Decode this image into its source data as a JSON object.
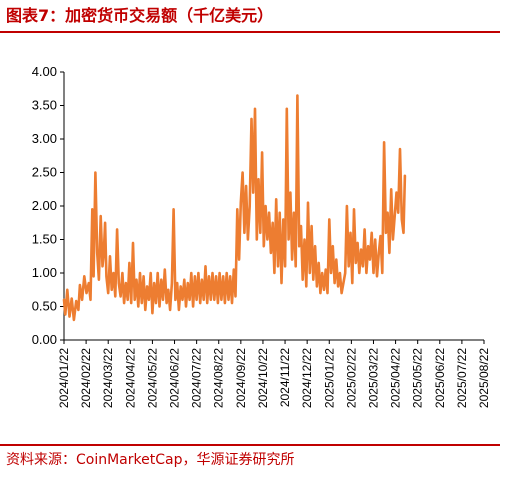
{
  "header": {
    "title": "图表7：加密货币交易额（千亿美元）"
  },
  "footer": {
    "source": "资料来源：CoinMarketCap，华源证券研究所"
  },
  "colors": {
    "accent": "#c00000",
    "series": "#ed7d31"
  },
  "chart_data": {
    "type": "line",
    "title": "",
    "xlabel": "",
    "ylabel": "",
    "ylim": [
      0,
      4
    ],
    "yticks": [
      "0.00",
      "0.50",
      "1.00",
      "1.50",
      "2.00",
      "2.50",
      "3.00",
      "3.50",
      "4.00"
    ],
    "xticks": [
      "2024/01/22",
      "2024/02/22",
      "2024/03/22",
      "2024/04/22",
      "2024/05/22",
      "2024/06/22",
      "2024/07/22",
      "2024/08/22",
      "2024/09/22",
      "2024/10/22",
      "2024/11/22",
      "2024/12/22",
      "2025/01/22",
      "2025/02/22",
      "2025/03/22",
      "2025/04/22",
      "2025/05/22",
      "2025/06/22",
      "2025/07/22",
      "2025/08/22"
    ],
    "grid": false,
    "legend": "none",
    "series": [
      {
        "values": [
          [
            0.0,
            0.6
          ],
          [
            0.06,
            0.38
          ],
          [
            0.15,
            0.75
          ],
          [
            0.25,
            0.35
          ],
          [
            0.35,
            0.62
          ],
          [
            0.45,
            0.3
          ],
          [
            0.55,
            0.58
          ],
          [
            0.65,
            0.45
          ],
          [
            0.72,
            0.82
          ],
          [
            0.82,
            0.6
          ],
          [
            0.92,
            0.95
          ],
          [
            1.02,
            0.7
          ],
          [
            1.12,
            0.85
          ],
          [
            1.2,
            0.6
          ],
          [
            1.28,
            1.95
          ],
          [
            1.34,
            0.95
          ],
          [
            1.42,
            2.5
          ],
          [
            1.5,
            1.3
          ],
          [
            1.58,
            0.9
          ],
          [
            1.66,
            1.85
          ],
          [
            1.74,
            1.1
          ],
          [
            1.8,
            1.3
          ],
          [
            1.86,
            1.75
          ],
          [
            1.92,
            0.95
          ],
          [
            2.0,
            0.7
          ],
          [
            2.08,
            1.25
          ],
          [
            2.16,
            0.75
          ],
          [
            2.24,
            1.0
          ],
          [
            2.32,
            0.65
          ],
          [
            2.4,
            1.65
          ],
          [
            2.48,
            0.85
          ],
          [
            2.56,
            0.65
          ],
          [
            2.64,
            1.0
          ],
          [
            2.72,
            0.55
          ],
          [
            2.8,
            0.85
          ],
          [
            2.88,
            0.6
          ],
          [
            2.96,
            1.15
          ],
          [
            3.04,
            0.55
          ],
          [
            3.12,
            1.45
          ],
          [
            3.2,
            0.6
          ],
          [
            3.28,
            0.9
          ],
          [
            3.36,
            0.5
          ],
          [
            3.44,
            1.0
          ],
          [
            3.52,
            0.55
          ],
          [
            3.6,
            0.95
          ],
          [
            3.68,
            0.45
          ],
          [
            3.76,
            0.8
          ],
          [
            3.84,
            0.6
          ],
          [
            3.92,
            1.0
          ],
          [
            4.0,
            0.4
          ],
          [
            4.08,
            0.85
          ],
          [
            4.16,
            0.55
          ],
          [
            4.24,
            1.0
          ],
          [
            4.32,
            0.5
          ],
          [
            4.4,
            0.9
          ],
          [
            4.48,
            0.6
          ],
          [
            4.56,
            1.05
          ],
          [
            4.64,
            0.55
          ],
          [
            4.72,
            0.75
          ],
          [
            4.8,
            0.45
          ],
          [
            4.88,
            0.85
          ],
          [
            4.96,
            1.95
          ],
          [
            5.04,
            0.6
          ],
          [
            5.12,
            0.85
          ],
          [
            5.2,
            0.45
          ],
          [
            5.28,
            0.8
          ],
          [
            5.36,
            0.6
          ],
          [
            5.44,
            0.9
          ],
          [
            5.52,
            0.5
          ],
          [
            5.6,
            0.85
          ],
          [
            5.68,
            0.6
          ],
          [
            5.76,
            1.0
          ],
          [
            5.84,
            0.5
          ],
          [
            5.92,
            0.95
          ],
          [
            6.0,
            0.6
          ],
          [
            6.08,
            1.0
          ],
          [
            6.16,
            0.55
          ],
          [
            6.24,
            0.9
          ],
          [
            6.32,
            0.6
          ],
          [
            6.4,
            1.1
          ],
          [
            6.48,
            0.55
          ],
          [
            6.56,
            0.95
          ],
          [
            6.64,
            0.6
          ],
          [
            6.72,
            1.0
          ],
          [
            6.8,
            0.6
          ],
          [
            6.88,
            0.95
          ],
          [
            6.96,
            0.55
          ],
          [
            7.04,
            1.0
          ],
          [
            7.12,
            0.6
          ],
          [
            7.2,
            0.95
          ],
          [
            7.28,
            0.55
          ],
          [
            7.36,
            1.0
          ],
          [
            7.44,
            0.6
          ],
          [
            7.52,
            0.95
          ],
          [
            7.6,
            0.55
          ],
          [
            7.68,
            1.05
          ],
          [
            7.76,
            0.65
          ],
          [
            7.84,
            1.95
          ],
          [
            7.92,
            1.2
          ],
          [
            8.0,
            2.05
          ],
          [
            8.08,
            2.5
          ],
          [
            8.16,
            1.6
          ],
          [
            8.24,
            2.3
          ],
          [
            8.32,
            1.5
          ],
          [
            8.4,
            2.0
          ],
          [
            8.48,
            3.3
          ],
          [
            8.56,
            2.2
          ],
          [
            8.64,
            3.45
          ],
          [
            8.72,
            1.5
          ],
          [
            8.8,
            2.4
          ],
          [
            8.88,
            1.6
          ],
          [
            8.96,
            2.8
          ],
          [
            9.04,
            1.4
          ],
          [
            9.12,
            2.0
          ],
          [
            9.2,
            1.5
          ],
          [
            9.28,
            1.9
          ],
          [
            9.36,
            1.3
          ],
          [
            9.44,
            1.75
          ],
          [
            9.52,
            1.0
          ],
          [
            9.6,
            2.1
          ],
          [
            9.68,
            1.1
          ],
          [
            9.76,
            1.9
          ],
          [
            9.84,
            0.85
          ],
          [
            9.92,
            1.8
          ],
          [
            10.0,
            1.1
          ],
          [
            10.08,
            3.45
          ],
          [
            10.16,
            1.5
          ],
          [
            10.24,
            2.2
          ],
          [
            10.32,
            1.2
          ],
          [
            10.4,
            1.9
          ],
          [
            10.48,
            1.1
          ],
          [
            10.56,
            3.65
          ],
          [
            10.64,
            1.4
          ],
          [
            10.72,
            1.7
          ],
          [
            10.8,
            0.9
          ],
          [
            10.88,
            1.5
          ],
          [
            10.96,
            0.8
          ],
          [
            11.04,
            2.05
          ],
          [
            11.12,
            1.0
          ],
          [
            11.2,
            1.7
          ],
          [
            11.28,
            0.9
          ],
          [
            11.36,
            1.4
          ],
          [
            11.44,
            0.8
          ],
          [
            11.52,
            1.15
          ],
          [
            11.6,
            0.7
          ],
          [
            11.68,
            1.0
          ],
          [
            11.76,
            0.75
          ],
          [
            11.84,
            1.05
          ],
          [
            11.92,
            0.7
          ],
          [
            12.0,
            1.8
          ],
          [
            12.08,
            1.0
          ],
          [
            12.16,
            1.4
          ],
          [
            12.24,
            0.85
          ],
          [
            12.32,
            1.2
          ],
          [
            12.4,
            0.8
          ],
          [
            12.48,
            1.0
          ],
          [
            12.56,
            0.7
          ],
          [
            12.64,
            0.85
          ],
          [
            12.72,
            1.0
          ],
          [
            12.8,
            2.0
          ],
          [
            12.88,
            1.1
          ],
          [
            12.96,
            1.6
          ],
          [
            13.04,
            0.85
          ],
          [
            13.12,
            1.95
          ],
          [
            13.2,
            1.15
          ],
          [
            13.28,
            1.45
          ],
          [
            13.36,
            1.0
          ],
          [
            13.44,
            1.35
          ],
          [
            13.52,
            1.1
          ],
          [
            13.6,
            1.65
          ],
          [
            13.68,
            1.0
          ],
          [
            13.76,
            1.4
          ],
          [
            13.84,
            1.2
          ],
          [
            13.92,
            1.6
          ],
          [
            14.0,
            1.0
          ],
          [
            14.08,
            1.5
          ],
          [
            14.16,
            0.95
          ],
          [
            14.24,
            1.3
          ],
          [
            14.32,
            1.55
          ],
          [
            14.4,
            1.0
          ],
          [
            14.48,
            2.95
          ],
          [
            14.56,
            1.6
          ],
          [
            14.64,
            1.9
          ],
          [
            14.72,
            1.3
          ],
          [
            14.8,
            2.25
          ],
          [
            14.88,
            1.5
          ],
          [
            14.96,
            1.85
          ],
          [
            15.04,
            2.2
          ],
          [
            15.12,
            1.9
          ],
          [
            15.2,
            2.85
          ],
          [
            15.28,
            1.8
          ],
          [
            15.36,
            1.6
          ],
          [
            15.42,
            2.45
          ]
        ]
      }
    ]
  }
}
